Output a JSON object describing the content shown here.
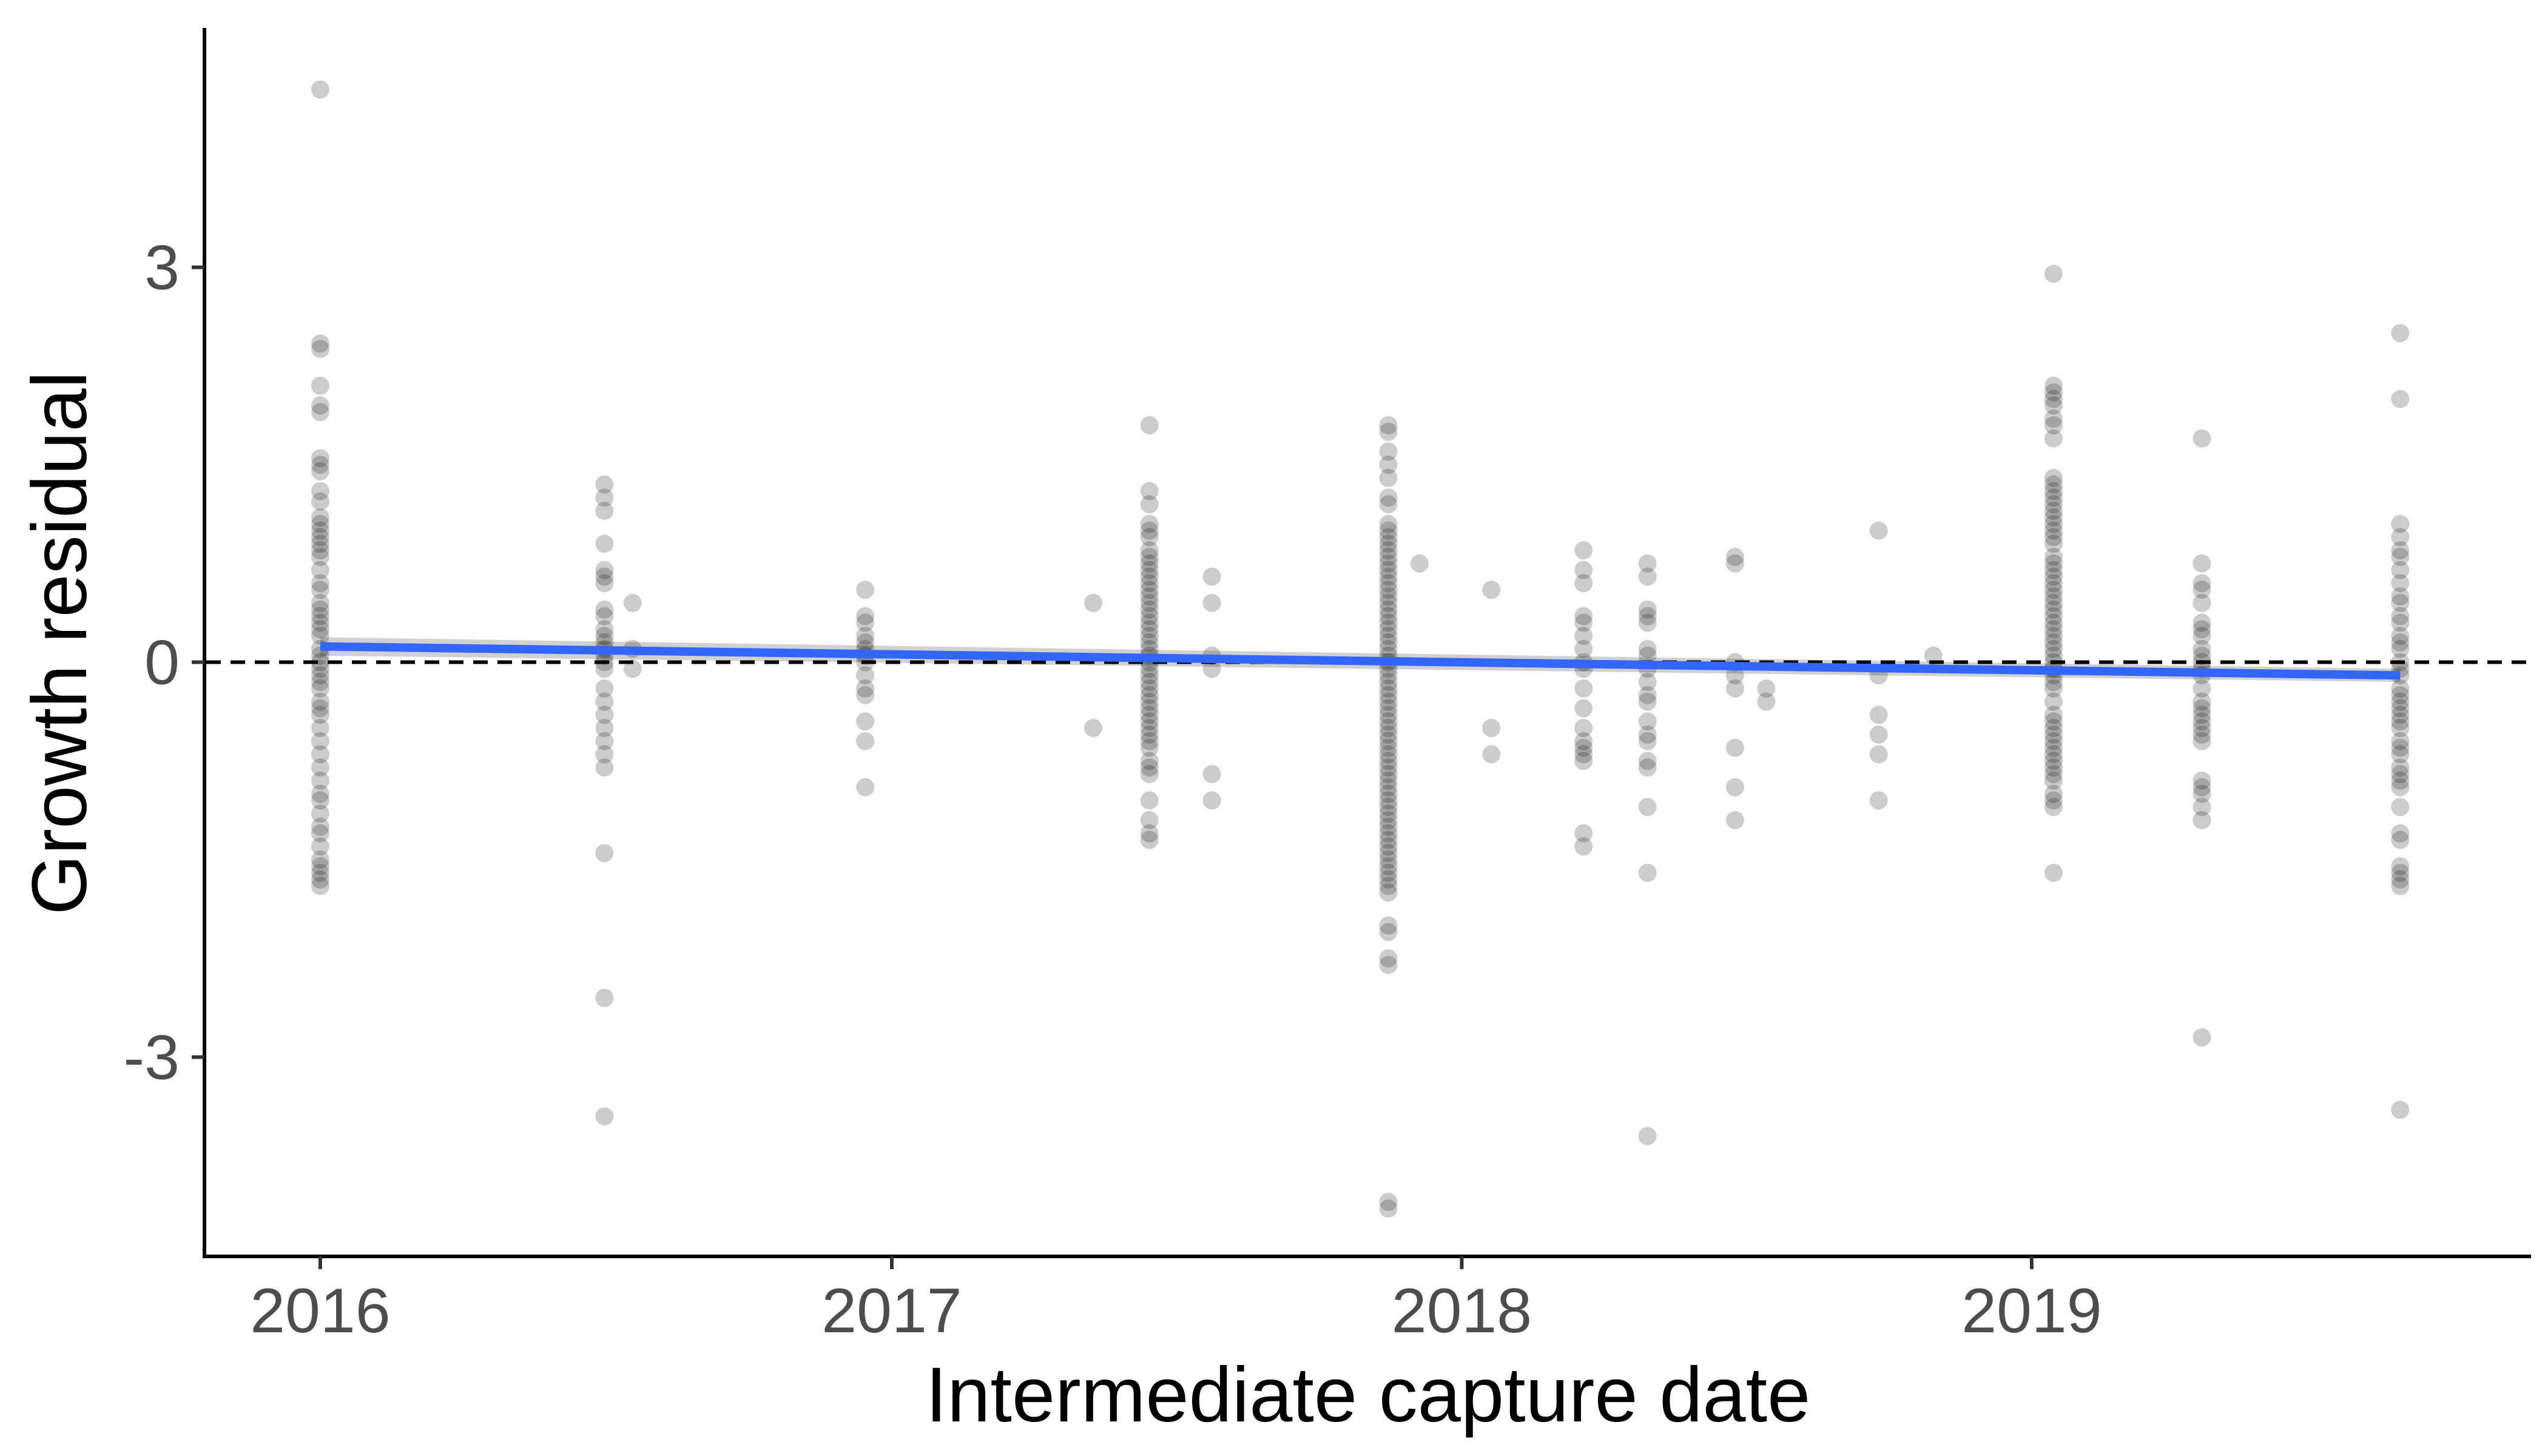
{
  "chart_data": {
    "type": "scatter",
    "title": "",
    "xlabel": "Intermediate capture date",
    "ylabel": "Growth residual",
    "x_is_date_axis": true,
    "xlim": [
      "2015-10-20",
      "2019-11-16"
    ],
    "ylim": [
      -4.5,
      4.8
    ],
    "x_ticks": [
      {
        "value": "2016-01-01",
        "label": "2016"
      },
      {
        "value": "2017-01-01",
        "label": "2017"
      },
      {
        "value": "2018-01-01",
        "label": "2018"
      },
      {
        "value": "2019-01-01",
        "label": "2019"
      }
    ],
    "y_ticks": [
      {
        "value": -3,
        "label": "-3"
      },
      {
        "value": 0,
        "label": "0"
      },
      {
        "value": 3,
        "label": "3"
      }
    ],
    "grid": false,
    "legend": "none",
    "reference_line": {
      "y": 0,
      "style": "dashed",
      "color": "#000000"
    },
    "point_color": "#000000",
    "point_opacity": 0.2,
    "series": [
      {
        "x": [
          "2016-01-01",
          "2016-01-01",
          "2016-01-01",
          "2016-01-01",
          "2016-01-01",
          "2016-01-01",
          "2016-01-01",
          "2016-01-01",
          "2016-01-01",
          "2016-01-01",
          "2016-01-01",
          "2016-01-01",
          "2016-01-01",
          "2016-01-01",
          "2016-01-01",
          "2016-01-01",
          "2016-01-01",
          "2016-01-01",
          "2016-01-01",
          "2016-01-01",
          "2016-01-01",
          "2016-01-01",
          "2016-01-01",
          "2016-01-01",
          "2016-01-01",
          "2016-01-01",
          "2016-01-01",
          "2016-01-01",
          "2016-01-01",
          "2016-01-01",
          "2016-01-01",
          "2016-01-01",
          "2016-01-01",
          "2016-01-01",
          "2016-01-01",
          "2016-01-01",
          "2016-01-01",
          "2016-01-01",
          "2016-01-01",
          "2016-01-01",
          "2016-01-01",
          "2016-01-01",
          "2016-01-01",
          "2016-01-01",
          "2016-01-01",
          "2016-01-01",
          "2016-01-01",
          "2016-01-01",
          "2016-01-01",
          "2016-01-01",
          "2016-01-01",
          "2016-01-01",
          "2016-01-01",
          "2016-07-01",
          "2016-07-01",
          "2016-07-01",
          "2016-07-01",
          "2016-07-01",
          "2016-07-01",
          "2016-07-01",
          "2016-07-01",
          "2016-07-01",
          "2016-07-01",
          "2016-07-01",
          "2016-07-01",
          "2016-07-01",
          "2016-07-01",
          "2016-07-01",
          "2016-07-01",
          "2016-07-01",
          "2016-07-01",
          "2016-07-01",
          "2016-07-01",
          "2016-07-01",
          "2016-07-01",
          "2016-07-01",
          "2016-07-01",
          "2016-07-01",
          "2016-07-01",
          "2016-07-19",
          "2016-07-19",
          "2016-07-19",
          "2016-12-15",
          "2016-12-15",
          "2016-12-15",
          "2016-12-15",
          "2016-12-15",
          "2016-12-15",
          "2016-12-15",
          "2016-12-15",
          "2016-12-15",
          "2016-12-15",
          "2016-12-15",
          "2016-12-15",
          "2016-12-15",
          "2016-12-15",
          "2017-05-10",
          "2017-05-10",
          "2017-06-15",
          "2017-06-15",
          "2017-06-15",
          "2017-06-15",
          "2017-06-15",
          "2017-06-15",
          "2017-06-15",
          "2017-06-15",
          "2017-06-15",
          "2017-06-15",
          "2017-06-15",
          "2017-06-15",
          "2017-06-15",
          "2017-06-15",
          "2017-06-15",
          "2017-06-15",
          "2017-06-15",
          "2017-06-15",
          "2017-06-15",
          "2017-06-15",
          "2017-06-15",
          "2017-06-15",
          "2017-06-15",
          "2017-06-15",
          "2017-06-15",
          "2017-06-15",
          "2017-06-15",
          "2017-06-15",
          "2017-06-15",
          "2017-06-15",
          "2017-06-15",
          "2017-06-15",
          "2017-06-15",
          "2017-06-15",
          "2017-06-15",
          "2017-06-15",
          "2017-06-15",
          "2017-06-15",
          "2017-06-15",
          "2017-06-15",
          "2017-06-15",
          "2017-06-15",
          "2017-06-15",
          "2017-06-15",
          "2017-07-25",
          "2017-07-25",
          "2017-07-25",
          "2017-07-25",
          "2017-07-25",
          "2017-07-25",
          "2017-11-15",
          "2017-11-15",
          "2017-11-15",
          "2017-11-15",
          "2017-11-15",
          "2017-11-15",
          "2017-11-15",
          "2017-11-15",
          "2017-11-15",
          "2017-11-15",
          "2017-11-15",
          "2017-11-15",
          "2017-11-15",
          "2017-11-15",
          "2017-11-15",
          "2017-11-15",
          "2017-11-15",
          "2017-11-15",
          "2017-11-15",
          "2017-11-15",
          "2017-11-15",
          "2017-11-15",
          "2017-11-15",
          "2017-11-15",
          "2017-11-15",
          "2017-11-15",
          "2017-11-15",
          "2017-11-15",
          "2017-11-15",
          "2017-11-15",
          "2017-11-15",
          "2017-11-15",
          "2017-11-15",
          "2017-11-15",
          "2017-11-15",
          "2017-11-15",
          "2017-11-15",
          "2017-11-15",
          "2017-11-15",
          "2017-11-15",
          "2017-11-15",
          "2017-11-15",
          "2017-11-15",
          "2017-11-15",
          "2017-11-15",
          "2017-11-15",
          "2017-11-15",
          "2017-11-15",
          "2017-11-15",
          "2017-11-15",
          "2017-11-15",
          "2017-11-15",
          "2017-11-15",
          "2017-11-15",
          "2017-11-15",
          "2017-11-15",
          "2017-11-15",
          "2017-11-15",
          "2017-11-15",
          "2017-11-15",
          "2017-11-15",
          "2017-11-15",
          "2017-11-15",
          "2017-11-15",
          "2017-11-15",
          "2017-11-15",
          "2017-11-15",
          "2017-11-15",
          "2017-11-15",
          "2017-11-15",
          "2017-12-05",
          "2018-01-20",
          "2018-01-20",
          "2018-01-20",
          "2018-03-20",
          "2018-03-20",
          "2018-03-20",
          "2018-03-20",
          "2018-03-20",
          "2018-03-20",
          "2018-03-20",
          "2018-03-20",
          "2018-03-20",
          "2018-03-20",
          "2018-03-20",
          "2018-03-20",
          "2018-03-20",
          "2018-03-20",
          "2018-03-20",
          "2018-03-20",
          "2018-03-20",
          "2018-03-20",
          "2018-04-30",
          "2018-04-30",
          "2018-04-30",
          "2018-04-30",
          "2018-04-30",
          "2018-04-30",
          "2018-04-30",
          "2018-04-30",
          "2018-04-30",
          "2018-04-30",
          "2018-04-30",
          "2018-04-30",
          "2018-04-30",
          "2018-04-30",
          "2018-04-30",
          "2018-04-30",
          "2018-04-30",
          "2018-04-30",
          "2018-04-30",
          "2018-06-25",
          "2018-06-25",
          "2018-06-25",
          "2018-06-25",
          "2018-06-25",
          "2018-06-25",
          "2018-06-25",
          "2018-06-25",
          "2018-07-15",
          "2018-07-15",
          "2018-09-25",
          "2018-09-25",
          "2018-09-25",
          "2018-09-25",
          "2018-09-25",
          "2018-09-25",
          "2018-10-30",
          "2019-01-15",
          "2019-01-15",
          "2019-01-15",
          "2019-01-15",
          "2019-01-15",
          "2019-01-15",
          "2019-01-15",
          "2019-01-15",
          "2019-01-15",
          "2019-01-15",
          "2019-01-15",
          "2019-01-15",
          "2019-01-15",
          "2019-01-15",
          "2019-01-15",
          "2019-01-15",
          "2019-01-15",
          "2019-01-15",
          "2019-01-15",
          "2019-01-15",
          "2019-01-15",
          "2019-01-15",
          "2019-01-15",
          "2019-01-15",
          "2019-01-15",
          "2019-01-15",
          "2019-01-15",
          "2019-01-15",
          "2019-01-15",
          "2019-01-15",
          "2019-01-15",
          "2019-01-15",
          "2019-01-15",
          "2019-01-15",
          "2019-01-15",
          "2019-01-15",
          "2019-01-15",
          "2019-01-15",
          "2019-01-15",
          "2019-01-15",
          "2019-01-15",
          "2019-01-15",
          "2019-01-15",
          "2019-01-15",
          "2019-01-15",
          "2019-01-15",
          "2019-01-15",
          "2019-01-15",
          "2019-01-15",
          "2019-01-15",
          "2019-01-15",
          "2019-01-15",
          "2019-01-15",
          "2019-01-15",
          "2019-01-15",
          "2019-01-15",
          "2019-04-20",
          "2019-04-20",
          "2019-04-20",
          "2019-04-20",
          "2019-04-20",
          "2019-04-20",
          "2019-04-20",
          "2019-04-20",
          "2019-04-20",
          "2019-04-20",
          "2019-04-20",
          "2019-04-20",
          "2019-04-20",
          "2019-04-20",
          "2019-04-20",
          "2019-04-20",
          "2019-04-20",
          "2019-04-20",
          "2019-04-20",
          "2019-04-20",
          "2019-04-20",
          "2019-04-20",
          "2019-04-20",
          "2019-04-20",
          "2019-04-20",
          "2019-04-20",
          "2019-04-20",
          "2019-08-25",
          "2019-08-25",
          "2019-08-25",
          "2019-08-25",
          "2019-08-25",
          "2019-08-25",
          "2019-08-25",
          "2019-08-25",
          "2019-08-25",
          "2019-08-25",
          "2019-08-25",
          "2019-08-25",
          "2019-08-25",
          "2019-08-25",
          "2019-08-25",
          "2019-08-25",
          "2019-08-25",
          "2019-08-25",
          "2019-08-25",
          "2019-08-25",
          "2019-08-25",
          "2019-08-25",
          "2019-08-25",
          "2019-08-25",
          "2019-08-25",
          "2019-08-25",
          "2019-08-25",
          "2019-08-25",
          "2019-08-25",
          "2019-08-25",
          "2019-08-25",
          "2019-08-25",
          "2019-08-25",
          "2019-08-25",
          "2019-08-25",
          "2019-08-25",
          "2019-08-25",
          "2019-08-25",
          "2019-08-25",
          "2019-08-25"
        ],
        "y": [
          4.35,
          2.42,
          2.38,
          2.1,
          1.95,
          1.9,
          1.55,
          1.5,
          1.45,
          1.3,
          1.22,
          1.1,
          1.05,
          1.0,
          0.95,
          0.9,
          0.85,
          0.8,
          0.7,
          0.6,
          0.55,
          0.45,
          0.4,
          0.35,
          0.3,
          0.25,
          0.2,
          0.1,
          0.05,
          0.0,
          -0.05,
          -0.1,
          -0.15,
          -0.2,
          -0.3,
          -0.35,
          -0.4,
          -0.5,
          -0.6,
          -0.7,
          -0.8,
          -0.9,
          -1.0,
          -1.05,
          -1.15,
          -1.25,
          -1.3,
          -1.4,
          -1.5,
          -1.55,
          -1.6,
          -1.65,
          -1.7,
          1.35,
          1.25,
          1.15,
          0.9,
          0.7,
          0.65,
          0.6,
          0.4,
          0.35,
          0.25,
          0.2,
          0.15,
          0.1,
          0.05,
          0.0,
          -0.05,
          -0.2,
          -0.3,
          -0.4,
          -0.5,
          -0.6,
          -0.7,
          -0.8,
          -1.45,
          -2.55,
          -3.45,
          0.45,
          0.1,
          -0.05,
          0.55,
          0.35,
          0.3,
          0.2,
          0.15,
          0.1,
          0.05,
          0.0,
          -0.1,
          -0.2,
          -0.25,
          -0.45,
          -0.6,
          -0.95,
          0.45,
          -0.5,
          1.8,
          1.3,
          1.2,
          1.05,
          1.0,
          0.95,
          0.85,
          0.8,
          0.75,
          0.7,
          0.65,
          0.6,
          0.55,
          0.5,
          0.45,
          0.4,
          0.35,
          0.3,
          0.25,
          0.2,
          0.15,
          0.1,
          0.05,
          0.0,
          -0.05,
          -0.1,
          -0.15,
          -0.2,
          -0.25,
          -0.3,
          -0.35,
          -0.4,
          -0.45,
          -0.5,
          -0.55,
          -0.6,
          -0.65,
          -0.75,
          -0.8,
          -0.85,
          -1.05,
          -1.2,
          -1.3,
          -1.35,
          0.65,
          0.45,
          0.05,
          -0.05,
          -0.85,
          -1.05,
          1.8,
          1.75,
          1.6,
          1.5,
          1.4,
          1.25,
          1.2,
          1.05,
          1.0,
          0.95,
          0.9,
          0.85,
          0.8,
          0.75,
          0.7,
          0.65,
          0.6,
          0.55,
          0.5,
          0.45,
          0.4,
          0.35,
          0.3,
          0.25,
          0.2,
          0.15,
          0.1,
          0.05,
          0.0,
          -0.05,
          -0.1,
          -0.15,
          -0.2,
          -0.25,
          -0.3,
          -0.35,
          -0.4,
          -0.45,
          -0.5,
          -0.55,
          -0.6,
          -0.65,
          -0.7,
          -0.75,
          -0.8,
          -0.85,
          -0.9,
          -0.95,
          -1.0,
          -1.05,
          -1.1,
          -1.15,
          -1.2,
          -1.25,
          -1.3,
          -1.35,
          -1.4,
          -1.45,
          -1.5,
          -1.55,
          -1.6,
          -1.65,
          -1.7,
          -1.75,
          -2.0,
          -2.05,
          -2.25,
          -2.3,
          -4.1,
          -4.15,
          0.75,
          0.55,
          -0.5,
          -0.7,
          0.85,
          0.7,
          0.6,
          0.35,
          0.3,
          0.2,
          0.1,
          0.0,
          -0.05,
          -0.2,
          -0.35,
          -0.5,
          -0.6,
          -0.65,
          -0.7,
          -0.75,
          -1.3,
          -1.4,
          0.75,
          0.65,
          0.4,
          0.35,
          0.3,
          0.1,
          0.05,
          -0.05,
          -0.15,
          -0.25,
          -0.3,
          -0.45,
          -0.55,
          -0.6,
          -0.75,
          -0.8,
          -1.1,
          -1.6,
          -3.6,
          0.8,
          0.75,
          0.0,
          -0.1,
          -0.2,
          -0.65,
          -0.95,
          -1.2,
          -0.2,
          -0.3,
          1.0,
          -0.1,
          -0.4,
          -0.55,
          -0.7,
          -1.05,
          0.05,
          2.95,
          2.1,
          2.05,
          2.0,
          1.95,
          1.85,
          1.8,
          1.7,
          1.4,
          1.35,
          1.3,
          1.25,
          1.2,
          1.15,
          1.1,
          1.05,
          1.0,
          0.95,
          0.9,
          0.8,
          0.75,
          0.7,
          0.65,
          0.6,
          0.55,
          0.5,
          0.45,
          0.4,
          0.35,
          0.3,
          0.25,
          0.2,
          0.15,
          0.1,
          0.05,
          0.0,
          -0.05,
          -0.1,
          -0.15,
          -0.2,
          -0.3,
          -0.4,
          -0.45,
          -0.5,
          -0.55,
          -0.6,
          -0.65,
          -0.7,
          -0.75,
          -0.8,
          -0.85,
          -0.9,
          -1.0,
          -1.05,
          -1.1,
          -1.6,
          1.7,
          0.75,
          0.6,
          0.55,
          0.45,
          0.3,
          0.25,
          0.2,
          0.1,
          0.05,
          0.0,
          -0.05,
          -0.1,
          -0.2,
          -0.3,
          -0.35,
          -0.4,
          -0.45,
          -0.5,
          -0.55,
          -0.6,
          -0.9,
          -0.95,
          -1.0,
          -1.1,
          -1.2,
          -2.85,
          2.5,
          2.0,
          1.05,
          0.95,
          0.85,
          0.8,
          0.7,
          0.6,
          0.5,
          0.45,
          0.35,
          0.3,
          0.2,
          0.15,
          0.1,
          0.0,
          -0.05,
          -0.1,
          -0.2,
          -0.25,
          -0.3,
          -0.35,
          -0.4,
          -0.45,
          -0.5,
          -0.6,
          -0.65,
          -0.7,
          -0.8,
          -0.85,
          -0.9,
          -0.95,
          -1.1,
          -1.3,
          -1.35,
          -1.55,
          -1.6,
          -1.65,
          -1.7,
          -3.4
        ]
      }
    ],
    "trend_line": {
      "method": "linear fit with confidence band",
      "color": "#3366FF",
      "band_color": "#999999",
      "x": [
        "2016-01-01",
        "2019-08-25"
      ],
      "y": [
        0.12,
        -0.1
      ],
      "band_halfwidth": [
        0.07,
        0.05
      ]
    }
  }
}
